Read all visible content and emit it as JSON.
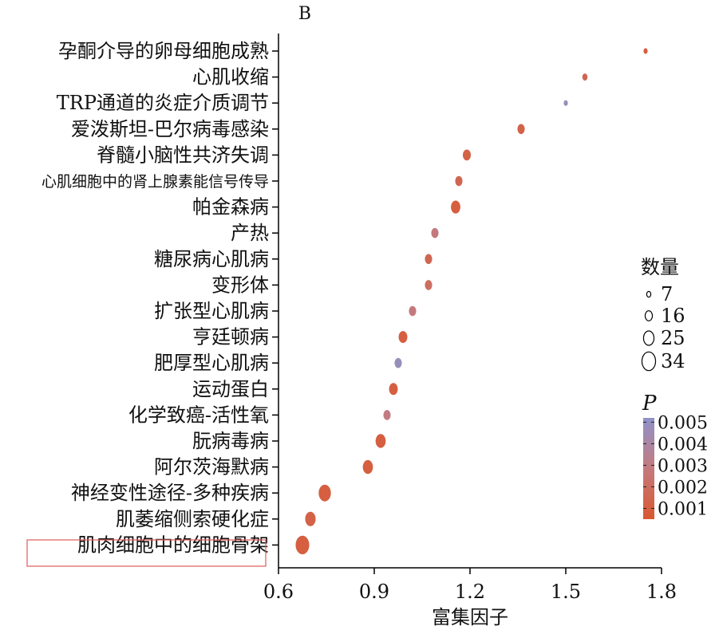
{
  "panel_label": "B",
  "chart_data": {
    "type": "scatter",
    "title": "",
    "xlabel": "富集因子",
    "ylabel": "",
    "xlim": [
      0.6,
      1.8
    ],
    "xticks": [
      "0.6",
      "0.9",
      "1.2",
      "1.5",
      "1.8"
    ],
    "xtick_values": [
      0.6,
      0.9,
      1.2,
      1.5,
      1.8
    ],
    "highlighted_category": "肌肉细胞中的细胞骨架",
    "points": [
      {
        "term": "孕酮介导的卵母细胞成熟",
        "rich_factor": 1.75,
        "count": 7,
        "p": 0.001
      },
      {
        "term": "心肌收缩",
        "rich_factor": 1.56,
        "count": 10,
        "p": 0.0015
      },
      {
        "term": "TRP通道的炎症介质调节",
        "rich_factor": 1.5,
        "count": 7,
        "p": 0.0048
      },
      {
        "term": "爱泼斯坦-巴尔病毒感染",
        "rich_factor": 1.36,
        "count": 16,
        "p": 0.0012
      },
      {
        "term": "脊髓小脑性共济失调",
        "rich_factor": 1.19,
        "count": 18,
        "p": 0.0012
      },
      {
        "term": "心肌细胞中的肾上腺素能信号传导",
        "rich_factor": 1.165,
        "count": 16,
        "p": 0.0015
      },
      {
        "term": "帕金森病",
        "rich_factor": 1.155,
        "count": 22,
        "p": 0.001
      },
      {
        "term": "产热",
        "rich_factor": 1.09,
        "count": 16,
        "p": 0.0028
      },
      {
        "term": "糖尿病心肌病",
        "rich_factor": 1.07,
        "count": 16,
        "p": 0.0015
      },
      {
        "term": "变形体",
        "rich_factor": 1.07,
        "count": 16,
        "p": 0.002
      },
      {
        "term": "扩张型心肌病",
        "rich_factor": 1.02,
        "count": 16,
        "p": 0.0028
      },
      {
        "term": "亨廷顿病",
        "rich_factor": 0.99,
        "count": 20,
        "p": 0.001
      },
      {
        "term": "肥厚型心肌病",
        "rich_factor": 0.975,
        "count": 16,
        "p": 0.0048
      },
      {
        "term": "运动蛋白",
        "rich_factor": 0.96,
        "count": 20,
        "p": 0.001
      },
      {
        "term": "化学致癌-活性氧",
        "rich_factor": 0.94,
        "count": 16,
        "p": 0.003
      },
      {
        "term": "朊病毒病",
        "rich_factor": 0.92,
        "count": 24,
        "p": 0.001
      },
      {
        "term": "阿尔茨海默病",
        "rich_factor": 0.88,
        "count": 24,
        "p": 0.001
      },
      {
        "term": "神经变性途径-多种疾病",
        "rich_factor": 0.745,
        "count": 30,
        "p": 0.001
      },
      {
        "term": "肌萎缩侧索硬化症",
        "rich_factor": 0.7,
        "count": 25,
        "p": 0.0012
      },
      {
        "term": "肌肉细胞中的细胞骨架",
        "rich_factor": 0.675,
        "count": 34,
        "p": 0.001
      }
    ],
    "size_legend": {
      "title": "数量",
      "entries": [
        {
          "label": "7",
          "value": 7
        },
        {
          "label": "16",
          "value": 16
        },
        {
          "label": "25",
          "value": 25
        },
        {
          "label": "34",
          "value": 34
        }
      ]
    },
    "color_legend": {
      "title": "P",
      "range": [
        0.0005,
        0.0052
      ],
      "ticks": [
        {
          "label": "0.005",
          "value": 0.005
        },
        {
          "label": "0.004",
          "value": 0.004
        },
        {
          "label": "0.003",
          "value": 0.003
        },
        {
          "label": "0.002",
          "value": 0.002
        },
        {
          "label": "0.001",
          "value": 0.001
        }
      ],
      "colors": {
        "low": "#d9582f",
        "mid": "#c47a7e",
        "high": "#8f92c9"
      }
    },
    "colors": {
      "axis": "#000000",
      "highlight_box": "#e05a5a"
    }
  }
}
